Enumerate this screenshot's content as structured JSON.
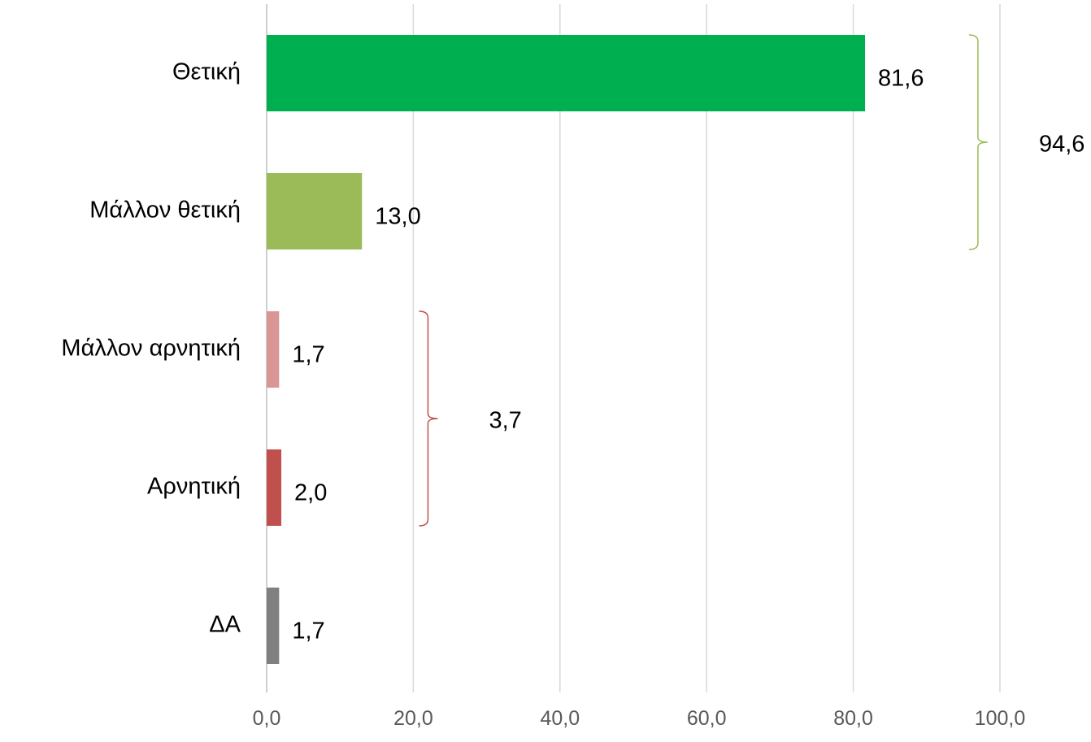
{
  "chart_data": {
    "type": "bar",
    "orientation": "horizontal",
    "categories": [
      "Θετική",
      "Μάλλον θετική",
      "Μάλλον αρνητική",
      "Αρνητική",
      "ΔΑ"
    ],
    "values": [
      81.6,
      13.0,
      1.7,
      2.0,
      1.7
    ],
    "value_labels": [
      "81,6",
      "13,0",
      "1,7",
      "2,0",
      "1,7"
    ],
    "colors": [
      "#00b050",
      "#9bbb59",
      "#da9694",
      "#c0504d",
      "#808080"
    ],
    "xlim": [
      0,
      100
    ],
    "x_ticks": [
      0,
      20,
      40,
      60,
      80,
      100
    ],
    "x_tick_labels": [
      "0,0",
      "20,0",
      "40,0",
      "60,0",
      "80,0",
      "100,0"
    ],
    "grid": true,
    "legend": "none",
    "title": "",
    "xlabel": "",
    "ylabel": "",
    "groups": [
      {
        "label": "94,6",
        "from_category": 0,
        "to_category": 1,
        "x_value": 97,
        "color": "#9bbb59"
      },
      {
        "label": "3,7",
        "from_category": 2,
        "to_category": 3,
        "x_value": 22,
        "color": "#c0504d"
      }
    ]
  }
}
